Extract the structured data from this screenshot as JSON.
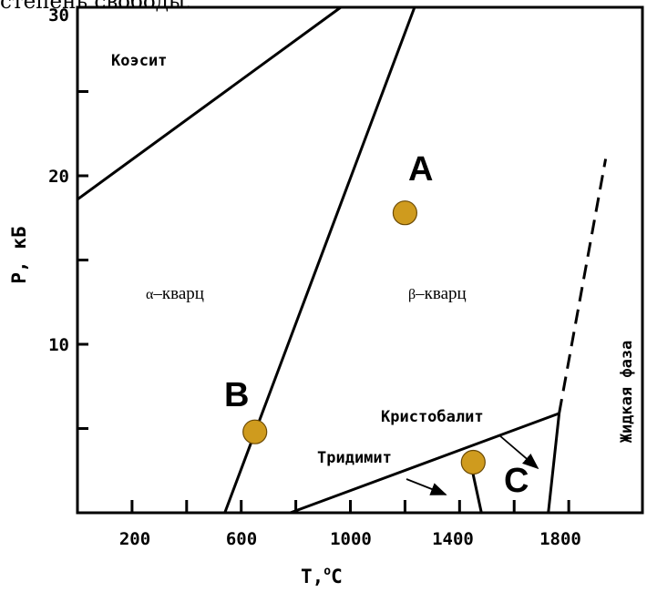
{
  "header_fragment": "степень свободы.",
  "axes": {
    "xlabel": "T,",
    "xlabel_degree": "o",
    "xlabel_unit": "C",
    "ylabel": "P, кБ",
    "x_ticks": [
      "200",
      "600",
      "1000",
      "1400",
      "1800"
    ],
    "y_ticks": [
      "10",
      "20",
      "30"
    ]
  },
  "phases": {
    "coesite": "Коэсит",
    "alpha_symbol": "α",
    "alpha_rest": "–кварц",
    "beta_symbol": "β",
    "beta_rest": "–кварц",
    "cristobalite": "Кристобалит",
    "tridymite": "Тридимит",
    "liquid": "Жидкая фаза"
  },
  "points": [
    {
      "label": "A",
      "T": 1200,
      "P": 17.8
    },
    {
      "label": "B",
      "T": 650,
      "P": 4.8
    },
    {
      "label": "C",
      "T": 1450,
      "P": 3.0
    }
  ],
  "boundaries": {
    "coesite_quartz": [
      [
        0,
        18.6
      ],
      [
        965,
        30
      ]
    ],
    "alpha_beta": [
      [
        540,
        0
      ],
      [
        1235,
        30
      ]
    ],
    "tridymite_quartz": [
      [
        780,
        0
      ],
      [
        1765,
        5.9
      ]
    ],
    "quartz_cristobalite": [
      [
        1440,
        3.0
      ],
      [
        1480,
        0
      ]
    ],
    "cristobalite_liquid": [
      [
        1725,
        0
      ],
      [
        1765,
        5.9
      ]
    ],
    "melting_dashed": [
      [
        1765,
        5.9
      ],
      [
        1935,
        21.0
      ]
    ]
  },
  "colors": {
    "marker": "#cf9b1e",
    "line": "#000000"
  }
}
